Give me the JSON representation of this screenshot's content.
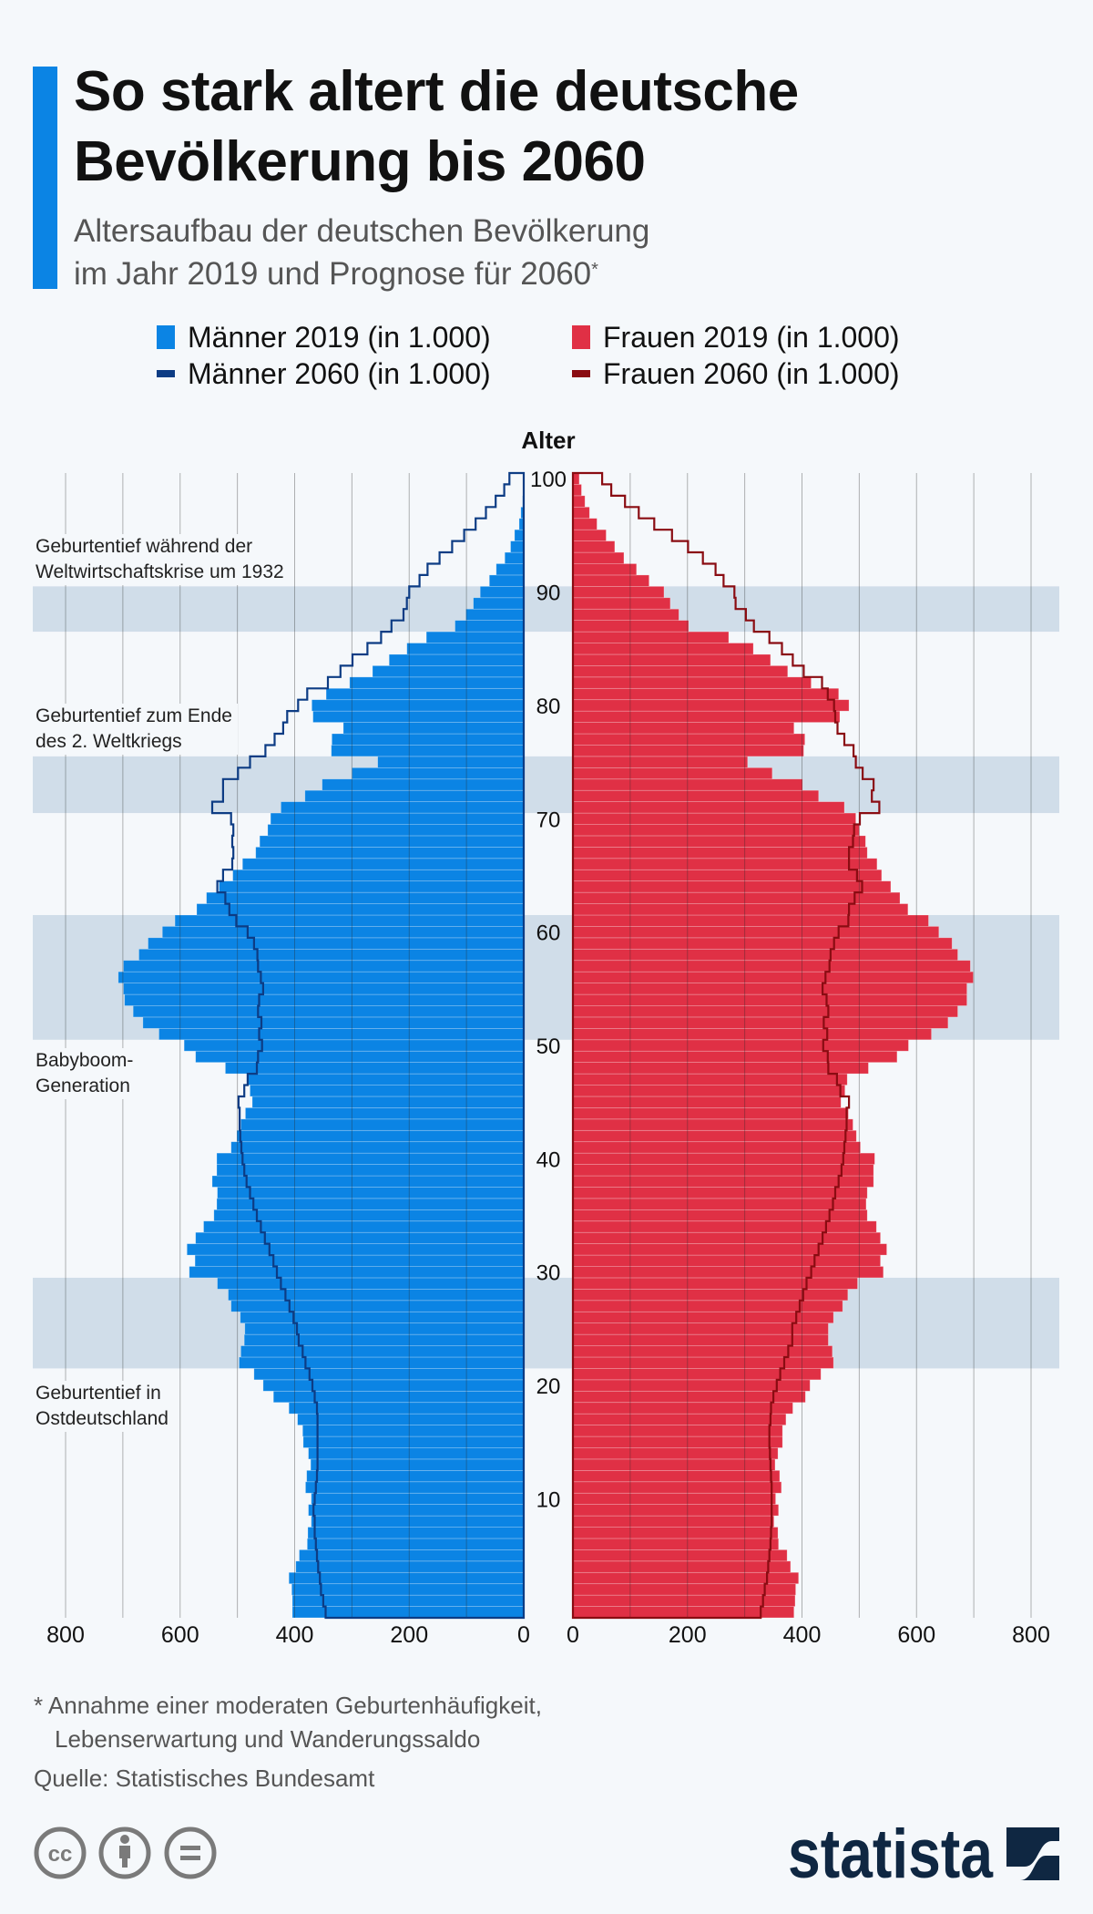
{
  "header": {
    "title_line1": "So stark altert die deutsche",
    "title_line2": "Bevölkerung bis 2060",
    "subtitle_line1": "Altersaufbau der deutschen Bevölkerung",
    "subtitle_line2": "im Jahr 2019 und Prognose für 2060",
    "subtitle_footnote_mark": "*"
  },
  "legend": [
    {
      "label": "Männer 2019 (in 1.000)",
      "color": "#0b84e4",
      "style": "box"
    },
    {
      "label": "Frauen 2019 (in 1.000)",
      "color": "#e03045",
      "style": "box"
    },
    {
      "label": "Männer 2060 (in 1.000)",
      "color": "#0d3c84",
      "style": "line"
    },
    {
      "label": "Frauen 2060 (in 1.000)",
      "color": "#8a0c12",
      "style": "line"
    }
  ],
  "chart_data": {
    "type": "bar",
    "subtype": "population-pyramid",
    "y_axis_label": "Alter",
    "ages": [
      0,
      1,
      2,
      3,
      4,
      5,
      6,
      7,
      8,
      9,
      10,
      11,
      12,
      13,
      14,
      15,
      16,
      17,
      18,
      19,
      20,
      21,
      22,
      23,
      24,
      25,
      26,
      27,
      28,
      29,
      30,
      31,
      32,
      33,
      34,
      35,
      36,
      37,
      38,
      39,
      40,
      41,
      42,
      43,
      44,
      45,
      46,
      47,
      48,
      49,
      50,
      51,
      52,
      53,
      54,
      55,
      56,
      57,
      58,
      59,
      60,
      61,
      62,
      63,
      64,
      65,
      66,
      67,
      68,
      69,
      70,
      71,
      72,
      73,
      74,
      75,
      76,
      77,
      78,
      79,
      80,
      81,
      82,
      83,
      84,
      85,
      86,
      87,
      88,
      89,
      90,
      91,
      92,
      93,
      94,
      95,
      96,
      97,
      98,
      99,
      100
    ],
    "age_ticks": [
      "10",
      "20",
      "30",
      "40",
      "50",
      "60",
      "70",
      "80",
      "90",
      "100"
    ],
    "x_ticks_left": [
      "800",
      "600",
      "400",
      "200",
      "0"
    ],
    "x_ticks_right": [
      "0",
      "200",
      "400",
      "600",
      "800"
    ],
    "xlim": [
      0,
      800
    ],
    "grid": true,
    "unit": "in 1.000",
    "series": [
      {
        "name": "Männer 2019 (in 1.000)",
        "side": "left",
        "mark": "bar",
        "color": "#0b84e4",
        "values": [
          404,
          404,
          405,
          410,
          398,
          392,
          378,
          377,
          371,
          376,
          371,
          381,
          379,
          372,
          376,
          385,
          386,
          395,
          410,
          437,
          455,
          471,
          497,
          494,
          488,
          487,
          495,
          511,
          516,
          535,
          584,
          574,
          588,
          573,
          559,
          541,
          536,
          535,
          544,
          536,
          536,
          511,
          501,
          494,
          486,
          474,
          478,
          481,
          521,
          573,
          593,
          637,
          665,
          682,
          697,
          699,
          708,
          699,
          672,
          656,
          631,
          609,
          571,
          554,
          532,
          508,
          491,
          468,
          461,
          447,
          442,
          424,
          382,
          352,
          300,
          255,
          336,
          335,
          315,
          368,
          370,
          345,
          304,
          264,
          235,
          204,
          170,
          120,
          101,
          88,
          76,
          60,
          48,
          33,
          23,
          16,
          8,
          5,
          2,
          1,
          1
        ]
      },
      {
        "name": "Frauen 2019 (in 1.000)",
        "side": "right",
        "mark": "bar",
        "color": "#e03045",
        "values": [
          386,
          388,
          389,
          394,
          380,
          374,
          359,
          358,
          351,
          359,
          354,
          364,
          361,
          353,
          358,
          366,
          366,
          372,
          384,
          406,
          414,
          433,
          455,
          453,
          446,
          446,
          455,
          471,
          480,
          497,
          542,
          537,
          548,
          537,
          530,
          514,
          512,
          514,
          525,
          525,
          527,
          502,
          495,
          489,
          481,
          468,
          475,
          479,
          516,
          566,
          586,
          626,
          655,
          672,
          688,
          688,
          699,
          694,
          672,
          662,
          639,
          621,
          585,
          571,
          555,
          539,
          531,
          514,
          511,
          500,
          494,
          474,
          429,
          401,
          348,
          305,
          403,
          405,
          386,
          466,
          482,
          464,
          416,
          375,
          345,
          315,
          272,
          202,
          185,
          170,
          159,
          133,
          111,
          89,
          73,
          58,
          42,
          29,
          21,
          15,
          11
        ]
      },
      {
        "name": "Männer 2060 (in 1.000)",
        "side": "left",
        "mark": "step-line",
        "color": "#0d3c84",
        "values": [
          346,
          350,
          354,
          356,
          359,
          361,
          363,
          365,
          365,
          367,
          365,
          363,
          361,
          360,
          360,
          360,
          360,
          360,
          361,
          365,
          369,
          374,
          381,
          386,
          393,
          396,
          402,
          409,
          416,
          424,
          431,
          437,
          444,
          452,
          459,
          466,
          472,
          478,
          484,
          488,
          491,
          493,
          495,
          496,
          496,
          498,
          488,
          482,
          466,
          464,
          457,
          462,
          458,
          464,
          462,
          455,
          459,
          464,
          465,
          471,
          482,
          502,
          514,
          521,
          535,
          525,
          509,
          507,
          509,
          507,
          511,
          544,
          525,
          525,
          499,
          478,
          451,
          435,
          420,
          413,
          394,
          378,
          342,
          320,
          299,
          273,
          249,
          231,
          210,
          204,
          200,
          182,
          168,
          147,
          125,
          104,
          84,
          66,
          49,
          34,
          25
        ]
      },
      {
        "name": "Frauen 2060 (in 1.000)",
        "side": "right",
        "mark": "step-line",
        "color": "#8a0c12",
        "values": [
          328,
          332,
          335,
          339,
          341,
          343,
          345,
          346,
          347,
          347,
          347,
          347,
          346,
          345,
          344,
          343,
          343,
          345,
          346,
          350,
          356,
          362,
          369,
          376,
          383,
          383,
          390,
          396,
          402,
          408,
          416,
          422,
          429,
          436,
          442,
          448,
          454,
          458,
          464,
          469,
          472,
          474,
          476,
          478,
          478,
          482,
          467,
          461,
          446,
          445,
          437,
          444,
          438,
          446,
          443,
          436,
          441,
          448,
          450,
          456,
          464,
          481,
          482,
          492,
          505,
          496,
          482,
          482,
          489,
          491,
          501,
          535,
          522,
          525,
          506,
          494,
          490,
          474,
          462,
          458,
          456,
          445,
          435,
          403,
          384,
          365,
          343,
          316,
          302,
          284,
          282,
          263,
          249,
          227,
          201,
          173,
          142,
          115,
          91,
          67,
          51
        ]
      }
    ],
    "highlight_bands": [
      [
        87,
        90
      ],
      [
        71,
        75
      ],
      [
        51,
        61
      ],
      [
        22,
        29
      ]
    ],
    "annotations": [
      {
        "line1": "Geburtentief während der",
        "line2": "Weltwirtschaftskrise um 1932"
      },
      {
        "line1": "Geburtentief zum Ende",
        "line2": "des 2. Weltkriegs"
      },
      {
        "line1": "Babyboom-",
        "line2": "Generation"
      },
      {
        "line1": "Geburtentief in",
        "line2": "Ostdeutschland"
      }
    ],
    "colors": {
      "band": "#d0dde9",
      "male_axis": "#0d3c84",
      "female_axis": "#8a0c12"
    }
  },
  "footer": {
    "note_line1": "* Annahme einer moderaten Geburtenhäufigkeit,",
    "note_line2": "Lebenserwartung und Wanderungssaldo",
    "source": "Quelle: Statistisches Bundesamt",
    "license_icons": [
      "cc-icon",
      "attribution-icon",
      "no-derivatives-icon"
    ],
    "logo_text": "statista"
  }
}
